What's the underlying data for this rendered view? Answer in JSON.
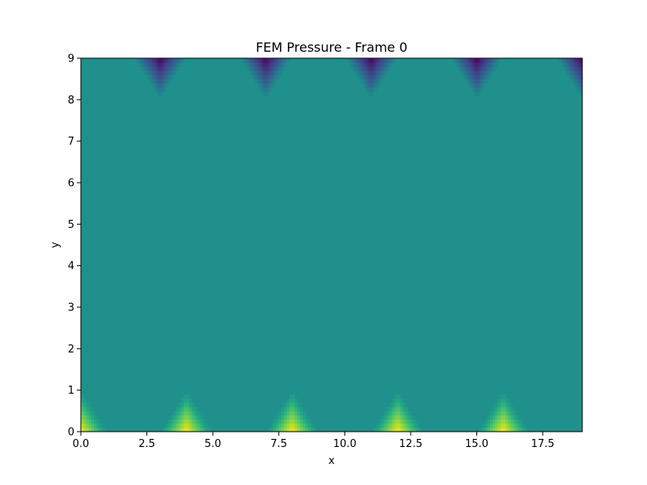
{
  "chart_data": {
    "type": "heatmap",
    "title": "FEM Pressure - Frame 0",
    "xlabel": "x",
    "ylabel": "y",
    "xlim": [
      0,
      19
    ],
    "ylim": [
      0,
      9
    ],
    "x_ticks": [
      0,
      2.5,
      5,
      7.5,
      10,
      12.5,
      15,
      17.5
    ],
    "x_tick_labels": [
      "0.0",
      "2.5",
      "5.0",
      "7.5",
      "10.0",
      "12.5",
      "15.0",
      "17.5"
    ],
    "y_ticks": [
      0,
      1,
      2,
      3,
      4,
      5,
      6,
      7,
      8,
      9
    ],
    "y_tick_labels": [
      "0",
      "1",
      "2",
      "3",
      "4",
      "5",
      "6",
      "7",
      "8",
      "9"
    ],
    "colormap": "viridis",
    "grid": false,
    "background_value": 0,
    "peaks": [
      {
        "x": 0,
        "y": 0,
        "value": 1
      },
      {
        "x": 4,
        "y": 0,
        "value": 1
      },
      {
        "x": 8,
        "y": 0,
        "value": 1
      },
      {
        "x": 12,
        "y": 0,
        "value": 1
      },
      {
        "x": 16,
        "y": 0,
        "value": 1
      },
      {
        "x": 3,
        "y": 9,
        "value": -1
      },
      {
        "x": 7,
        "y": 9,
        "value": -1
      },
      {
        "x": 11,
        "y": 9,
        "value": -1
      },
      {
        "x": 15,
        "y": 9,
        "value": -1
      },
      {
        "x": 19,
        "y": 9,
        "value": -1
      }
    ]
  }
}
